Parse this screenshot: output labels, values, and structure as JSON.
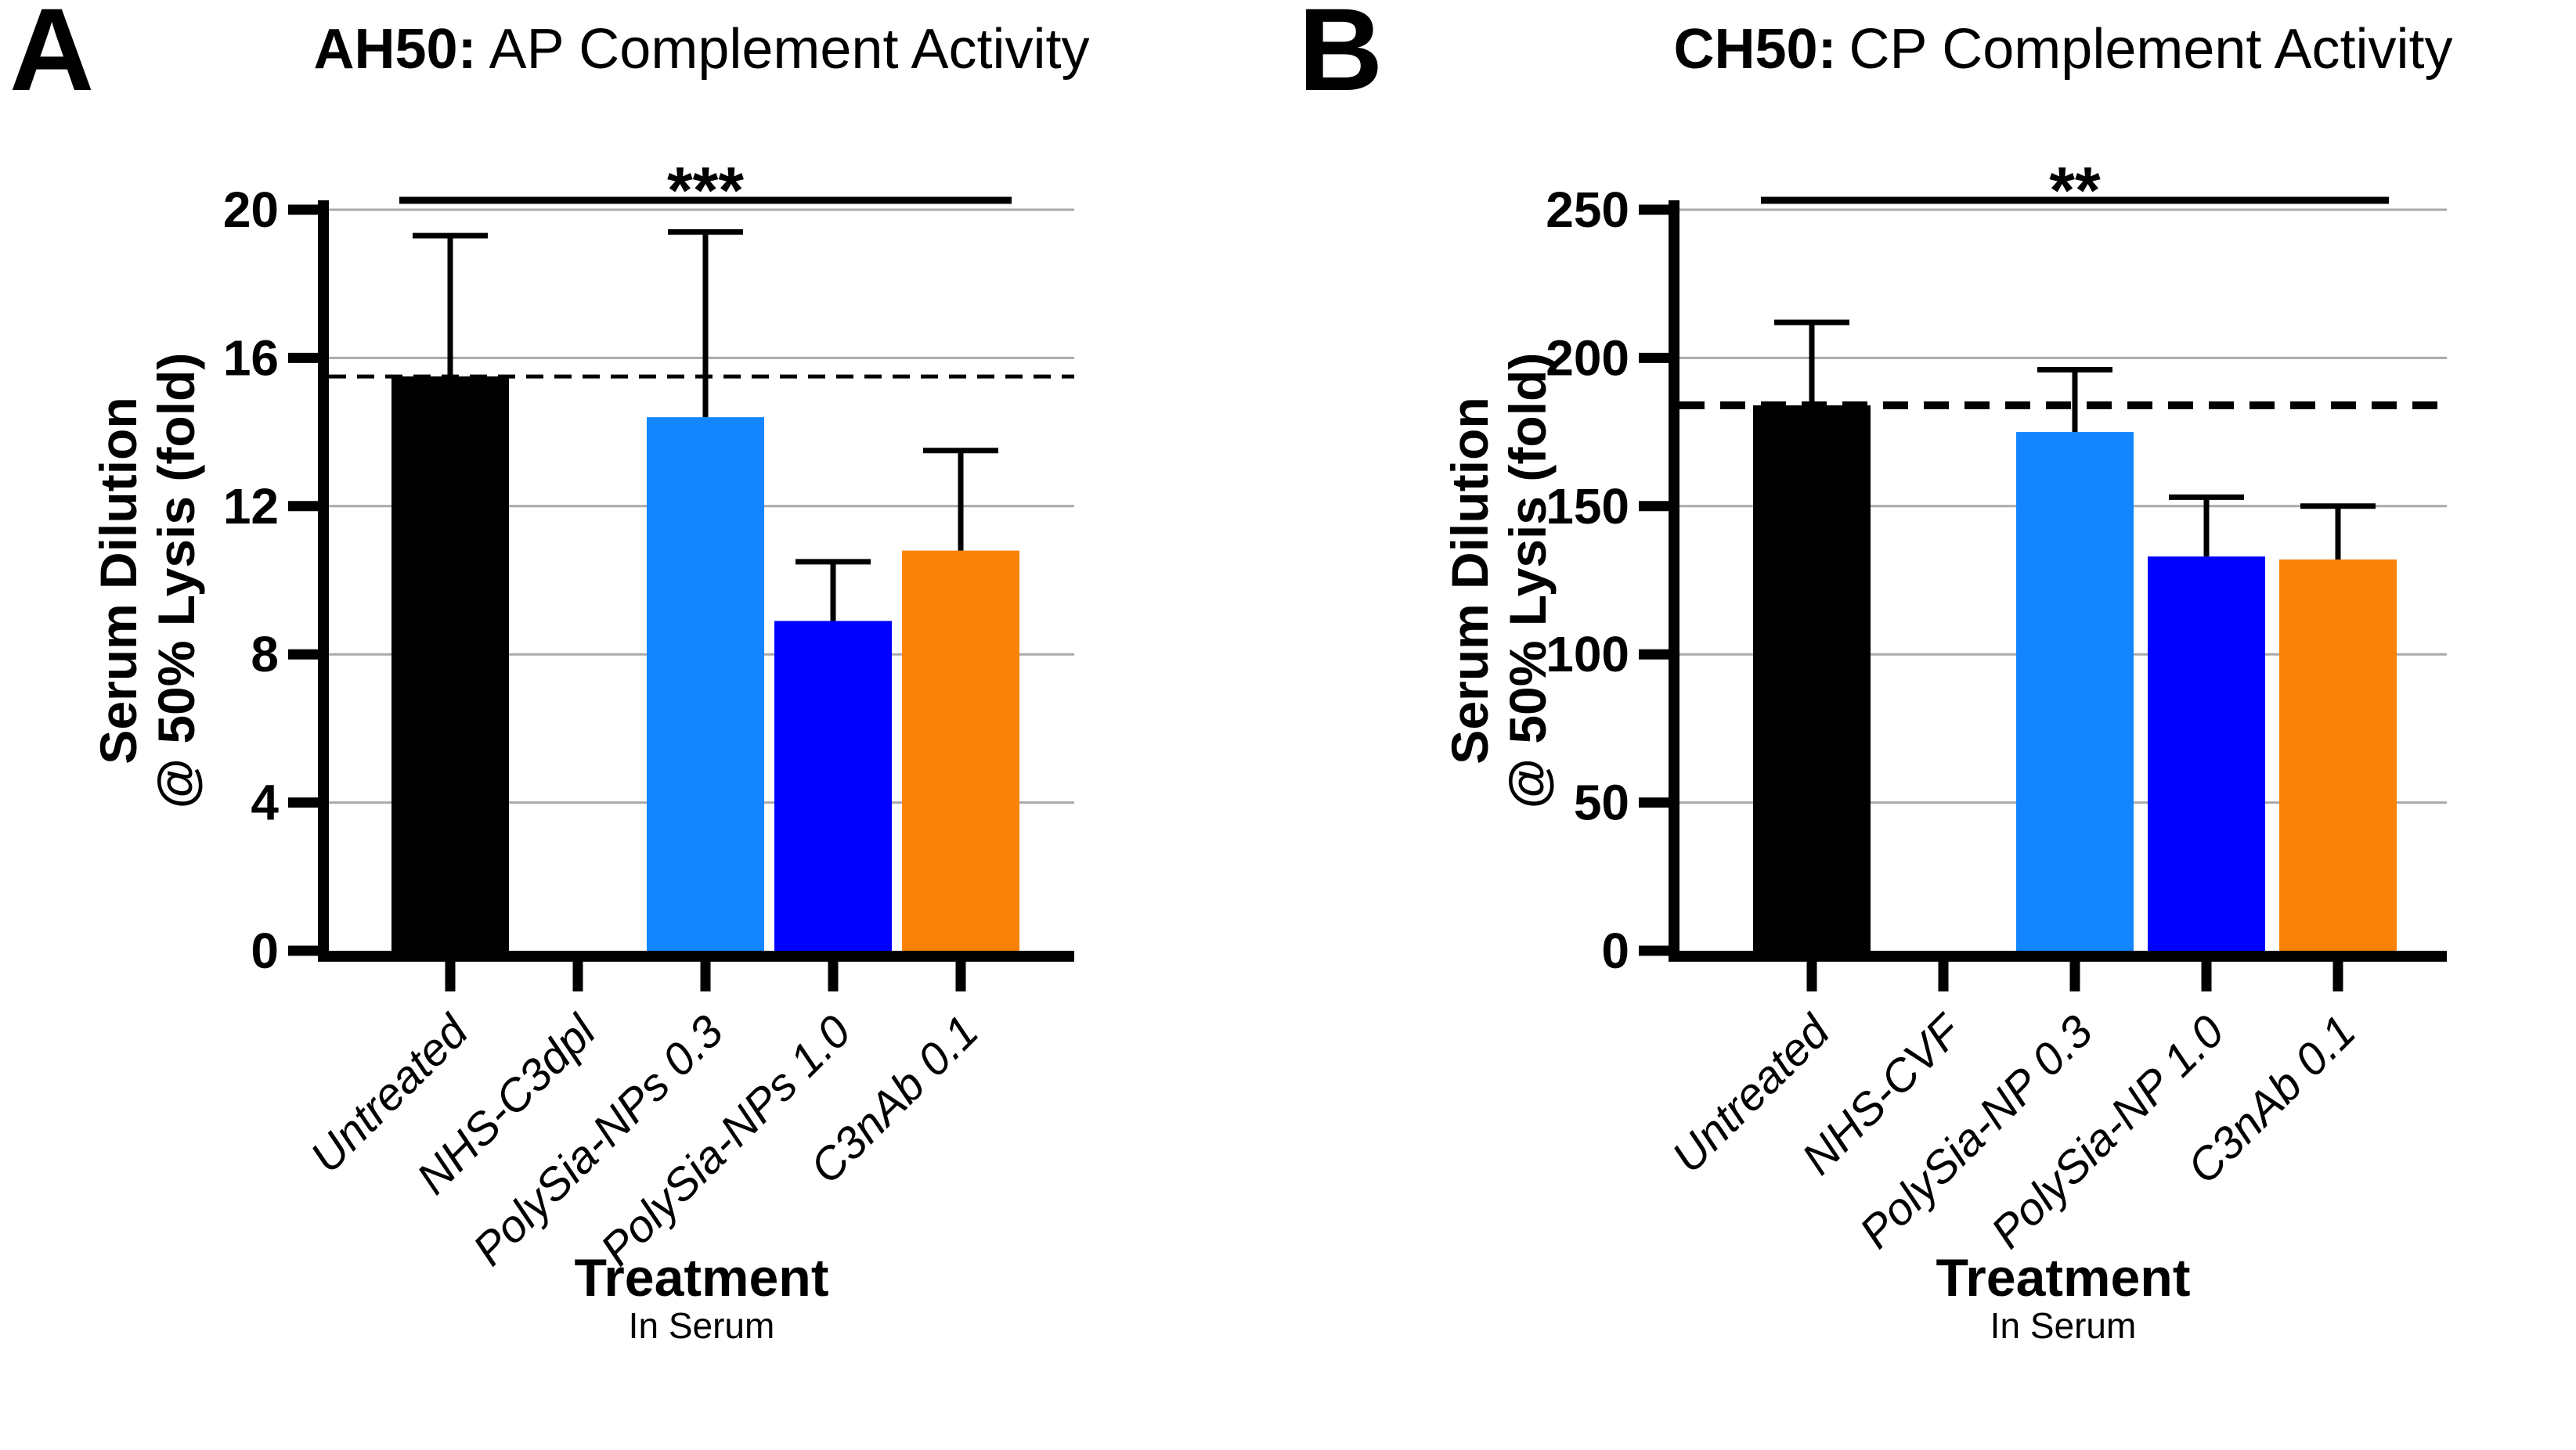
{
  "styles": {
    "background": "#FFFFFF",
    "grid_color": "#A9A9A9",
    "axis_color": "#000000",
    "bar_black": "#000000",
    "bar_blue_light": "#1385FF",
    "bar_blue_dark": "#0000FF",
    "bar_orange": "#FA8307"
  },
  "chart_data": [
    {
      "type": "bar",
      "panel_letter": "A",
      "title_bold": "AH50:",
      "title_rest": "AP Complement Activity",
      "title": "AH50: AP Complement Activity",
      "ylabel": "Serum Dilution @ 50% Lysis (fold)",
      "ylabel_line1": "Serum Dilution",
      "ylabel_line2": "@ 50% Lysis (fold)",
      "xlabel": "Treatment",
      "xlabel_subtitle": "In Serum",
      "categories": [
        "Untreated",
        "NHS-C3dpl",
        "PolySia-NPs 0.3",
        "PolySia-NPs 1.0",
        "C3nAb 0.1"
      ],
      "values": [
        15.5,
        0,
        14.4,
        8.9,
        10.8
      ],
      "error_upper": [
        19.3,
        null,
        19.4,
        10.5,
        13.5
      ],
      "bar_colors": [
        "#000000",
        null,
        "#1385FF",
        "#0000FF",
        "#FA8307"
      ],
      "ylim": [
        0,
        20
      ],
      "yticks": [
        0,
        4,
        8,
        12,
        16,
        20
      ],
      "grid": true,
      "legend": "none",
      "reference_line_dashed": 15.5,
      "significance": {
        "label": "***",
        "from": "Untreated",
        "to": "C3nAb 0.1"
      }
    },
    {
      "type": "bar",
      "panel_letter": "B",
      "title_bold": "CH50:",
      "title_rest": "CP Complement Activity",
      "title": "CH50: CP Complement Activity",
      "ylabel": "Serum Dilution @ 50% Lysis (fold)",
      "ylabel_line1": "Serum Dilution",
      "ylabel_line2": "@ 50% Lysis (fold)",
      "xlabel": "Treatment",
      "xlabel_subtitle": "In Serum",
      "categories": [
        "Untreated",
        "NHS-CVF",
        "PolySia-NP 0.3",
        "PolySia-NP 1.0",
        "C3nAb 0.1"
      ],
      "values": [
        184,
        0,
        175,
        133,
        132
      ],
      "error_upper": [
        212,
        null,
        196,
        153,
        150
      ],
      "bar_colors": [
        "#000000",
        null,
        "#1385FF",
        "#0000FF",
        "#FA8307"
      ],
      "ylim": [
        0,
        250
      ],
      "yticks": [
        0,
        50,
        100,
        150,
        200,
        250
      ],
      "grid": true,
      "legend": "none",
      "reference_line_dashed": 184,
      "significance": {
        "label": "**",
        "from": "Untreated",
        "to": "C3nAb 0.1"
      }
    }
  ]
}
